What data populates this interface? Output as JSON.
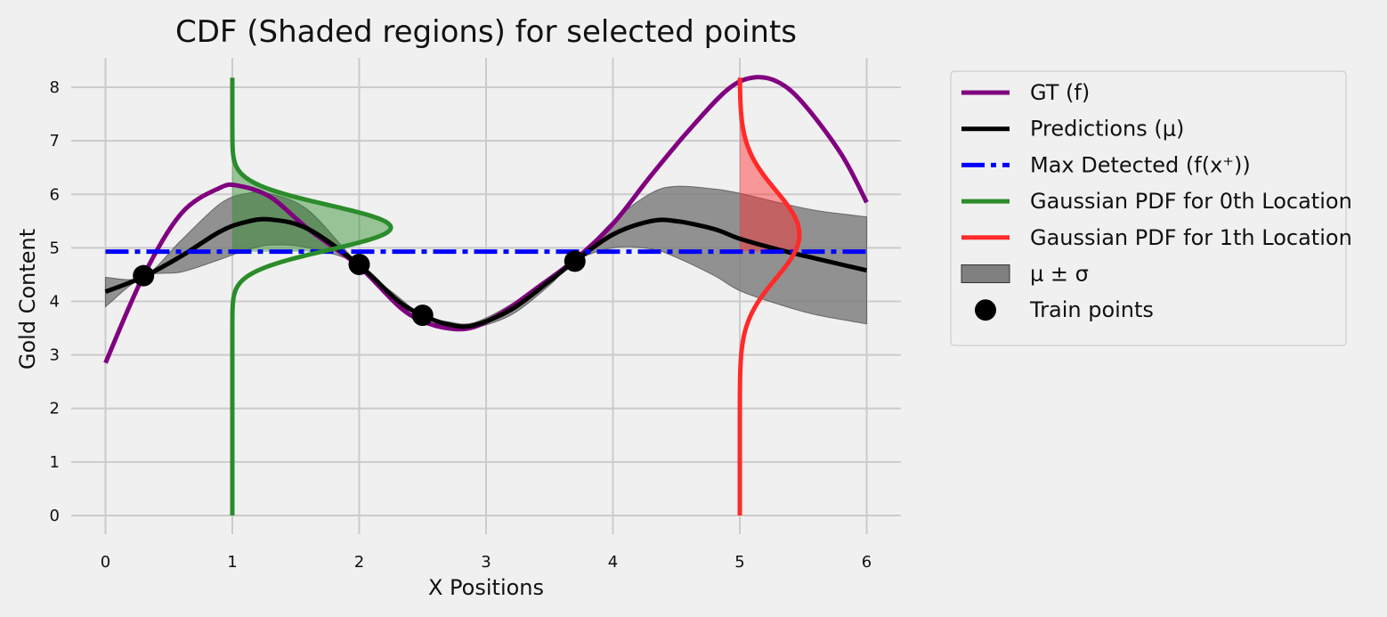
{
  "chart_data": {
    "type": "line",
    "title": "CDF (Shaded regions) for selected points",
    "xlabel": "X Positions",
    "ylabel": "Gold Content",
    "xlim": [
      -0.27,
      6.27
    ],
    "ylim": [
      -0.35,
      8.55
    ],
    "xticks": [
      0,
      1,
      2,
      3,
      4,
      5,
      6
    ],
    "yticks": [
      0,
      1,
      2,
      3,
      4,
      5,
      6,
      7,
      8
    ],
    "grid": true,
    "legend_position": "outside-right-top",
    "colors": {
      "gt": "#800080",
      "pred": "#000000",
      "max": "#0000ff",
      "pdf0": "#2a8c2a",
      "pdf1": "#ff2a2a",
      "band": "#808080",
      "train": "#000000",
      "grid": "#cbcbcb"
    },
    "legend": [
      {
        "key": "gt",
        "label": "GT (f)",
        "style": "line"
      },
      {
        "key": "pred",
        "label": "Predictions (μ)",
        "style": "line"
      },
      {
        "key": "max",
        "label": "Max Detected (f(x⁺))",
        "style": "dashdot"
      },
      {
        "key": "pdf0",
        "label": "Gaussian PDF for 0th Location",
        "style": "line"
      },
      {
        "key": "pdf1",
        "label": "Gaussian PDF for 1th Location",
        "style": "line"
      },
      {
        "key": "band",
        "label": "μ ± σ",
        "style": "patch"
      },
      {
        "key": "train",
        "label": "Train points",
        "style": "marker"
      }
    ],
    "series": [
      {
        "key": "gt",
        "x": [
          0,
          0.3,
          0.6,
          0.9,
          1.05,
          1.3,
          1.6,
          2.0,
          2.4,
          2.8,
          3.1,
          3.4,
          3.7,
          4.0,
          4.3,
          4.6,
          4.9,
          5.1,
          5.3,
          5.5,
          5.8,
          6.0
        ],
        "y": [
          2.85,
          4.48,
          5.65,
          6.12,
          6.16,
          5.95,
          5.35,
          4.65,
          3.75,
          3.48,
          3.75,
          4.25,
          4.78,
          5.45,
          6.35,
          7.2,
          7.95,
          8.18,
          8.1,
          7.7,
          6.75,
          5.85
        ]
      },
      {
        "key": "pred",
        "x": [
          0,
          0.3,
          0.6,
          0.9,
          1.1,
          1.3,
          1.6,
          2.0,
          2.3,
          2.5,
          2.7,
          2.9,
          3.2,
          3.5,
          3.7,
          4.0,
          4.3,
          4.5,
          4.8,
          5.0,
          5.3,
          5.6,
          6.0
        ],
        "y": [
          4.18,
          4.46,
          4.85,
          5.3,
          5.48,
          5.53,
          5.35,
          4.68,
          4.02,
          3.74,
          3.57,
          3.55,
          3.85,
          4.38,
          4.75,
          5.25,
          5.5,
          5.5,
          5.35,
          5.17,
          4.97,
          4.8,
          4.58
        ]
      },
      {
        "key": "max",
        "x": [
          0,
          6
        ],
        "y": [
          4.93,
          4.93
        ]
      }
    ],
    "band": {
      "x": [
        0,
        0.3,
        0.6,
        0.9,
        1.1,
        1.3,
        1.6,
        2.0,
        2.3,
        2.5,
        2.7,
        2.9,
        3.2,
        3.5,
        3.7,
        4.0,
        4.3,
        4.5,
        4.8,
        5.0,
        5.3,
        5.6,
        6.0
      ],
      "lower": [
        3.9,
        4.46,
        4.55,
        4.78,
        4.95,
        5.05,
        5.0,
        4.68,
        3.95,
        3.74,
        3.48,
        3.5,
        3.75,
        4.3,
        4.75,
        5.0,
        4.98,
        4.82,
        4.48,
        4.2,
        3.95,
        3.75,
        3.58
      ],
      "upper": [
        4.45,
        4.46,
        5.15,
        5.82,
        6.01,
        6.01,
        5.7,
        4.68,
        4.1,
        3.74,
        3.62,
        3.6,
        3.95,
        4.46,
        4.75,
        5.5,
        6.02,
        6.15,
        6.1,
        6.02,
        5.85,
        5.7,
        5.58
      ]
    },
    "gaussian_pdfs": [
      {
        "key": "pdf0",
        "x0": 1.0,
        "mean": 5.38,
        "sd": 0.42,
        "peak_width": 1.25,
        "y_range": [
          0,
          8.18
        ],
        "shade_from": 4.93
      },
      {
        "key": "pdf1",
        "x0": 5.0,
        "mean": 5.25,
        "sd": 0.82,
        "peak_width": 0.47,
        "y_range": [
          0,
          8.18
        ],
        "shade_from": 4.93
      }
    ],
    "train_points": {
      "x": [
        0.3,
        2.0,
        2.5,
        3.7
      ],
      "y": [
        4.48,
        4.69,
        3.74,
        4.75
      ]
    }
  }
}
